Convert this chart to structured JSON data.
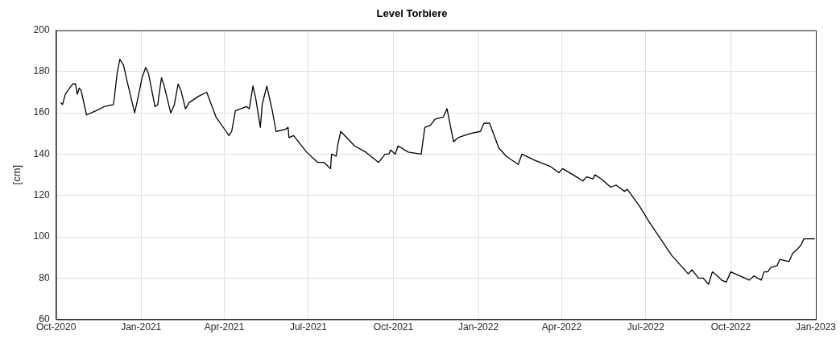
{
  "chart_data": {
    "type": "line",
    "title": "Level Torbiere",
    "ylabel": "[cm]",
    "xlim": [
      "2020-10-01",
      "2023-01-01"
    ],
    "xticks": [
      {
        "value": "2020-10-01",
        "label": "Oct-2020"
      },
      {
        "value": "2021-01-01",
        "label": "Jan-2021"
      },
      {
        "value": "2021-04-01",
        "label": "Apr-2021"
      },
      {
        "value": "2021-07-01",
        "label": "Jul-2021"
      },
      {
        "value": "2021-10-01",
        "label": "Oct-2021"
      },
      {
        "value": "2022-01-01",
        "label": "Jan-2022"
      },
      {
        "value": "2022-04-01",
        "label": "Apr-2022"
      },
      {
        "value": "2022-07-01",
        "label": "Jul-2022"
      },
      {
        "value": "2022-10-01",
        "label": "Oct-2022"
      },
      {
        "value": "2023-01-01",
        "label": "Jan-2023"
      }
    ],
    "ylim": [
      60,
      200
    ],
    "yticks": [
      60,
      80,
      100,
      120,
      140,
      160,
      180,
      200
    ],
    "grid": true,
    "legend": false,
    "marker": "none",
    "line_style": "solid",
    "series": [
      {
        "color": "#000000",
        "x": [
          "2020-10-06",
          "2020-10-08",
          "2020-10-11",
          "2020-10-14",
          "2020-10-19",
          "2020-10-22",
          "2020-10-24",
          "2020-10-26",
          "2020-10-28",
          "2020-11-03",
          "2020-11-13",
          "2020-11-22",
          "2020-12-02",
          "2020-12-03",
          "2020-12-06",
          "2020-12-09",
          "2020-12-13",
          "2020-12-17",
          "2020-12-25",
          "2020-12-29",
          "2021-01-02",
          "2021-01-06",
          "2021-01-09",
          "2021-01-16",
          "2021-01-19",
          "2021-01-23",
          "2021-01-26",
          "2021-02-02",
          "2021-02-06",
          "2021-02-10",
          "2021-02-13",
          "2021-02-18",
          "2021-02-22",
          "2021-03-04",
          "2021-03-13",
          "2021-03-23",
          "2021-04-03",
          "2021-04-06",
          "2021-04-09",
          "2021-04-13",
          "2021-04-25",
          "2021-04-28",
          "2021-05-02",
          "2021-05-05",
          "2021-05-10",
          "2021-05-12",
          "2021-05-17",
          "2021-05-23",
          "2021-05-27",
          "2021-06-06",
          "2021-06-09",
          "2021-06-10",
          "2021-06-15",
          "2021-06-29",
          "2021-07-11",
          "2021-07-18",
          "2021-07-25",
          "2021-07-26",
          "2021-07-31",
          "2021-08-02",
          "2021-08-05",
          "2021-08-20",
          "2021-09-01",
          "2021-09-15",
          "2021-09-22",
          "2021-09-26",
          "2021-09-28",
          "2021-10-03",
          "2021-10-06",
          "2021-10-17",
          "2021-10-31",
          "2021-11-04",
          "2021-11-10",
          "2021-11-15",
          "2021-11-24",
          "2021-11-28",
          "2021-12-05",
          "2021-12-10",
          "2021-12-23",
          "2022-01-03",
          "2022-01-07",
          "2022-01-13",
          "2022-01-23",
          "2022-01-31",
          "2022-02-13",
          "2022-02-17",
          "2022-03-03",
          "2022-03-20",
          "2022-03-29",
          "2022-04-02",
          "2022-04-17",
          "2022-04-24",
          "2022-04-28",
          "2022-05-05",
          "2022-05-07",
          "2022-05-14",
          "2022-05-24",
          "2022-05-30",
          "2022-06-08",
          "2022-06-11",
          "2022-06-24",
          "2022-07-05",
          "2022-07-17",
          "2022-07-29",
          "2022-08-06",
          "2022-08-16",
          "2022-08-20",
          "2022-08-27",
          "2022-09-01",
          "2022-09-07",
          "2022-09-11",
          "2022-09-19",
          "2022-09-21",
          "2022-09-26",
          "2022-10-01",
          "2022-10-21",
          "2022-10-26",
          "2022-11-03",
          "2022-11-06",
          "2022-11-10",
          "2022-11-13",
          "2022-11-20",
          "2022-11-23",
          "2022-12-03",
          "2022-12-07",
          "2022-12-12",
          "2022-12-16",
          "2022-12-19",
          "2022-12-31"
        ],
        "values": [
          165,
          164,
          169,
          171,
          174,
          174,
          169,
          172,
          171,
          159,
          161,
          163,
          164,
          167,
          179,
          186,
          183,
          175,
          160,
          168,
          177,
          182,
          179,
          163,
          164,
          177,
          173,
          160,
          164,
          174,
          171,
          162,
          165,
          168,
          170,
          158,
          151,
          149,
          151,
          161,
          163,
          162,
          173,
          167,
          153,
          164,
          173,
          161,
          151,
          152,
          153,
          148,
          149,
          141,
          136,
          136,
          133,
          140,
          139,
          145,
          151,
          144,
          141,
          136,
          140,
          140,
          142,
          140,
          144,
          141,
          140,
          153,
          154,
          157,
          158,
          162,
          146,
          148,
          150,
          151,
          155,
          155,
          143,
          139,
          135,
          140,
          137,
          134,
          131,
          133,
          129,
          127,
          129,
          128,
          130,
          128,
          124,
          125,
          122,
          123,
          115,
          107,
          99,
          91,
          87,
          82,
          84,
          80,
          80,
          77,
          83,
          80,
          79,
          78,
          83,
          79,
          81,
          79,
          83,
          83,
          85,
          86,
          89,
          88,
          92,
          94,
          96,
          99,
          99
        ]
      }
    ]
  }
}
